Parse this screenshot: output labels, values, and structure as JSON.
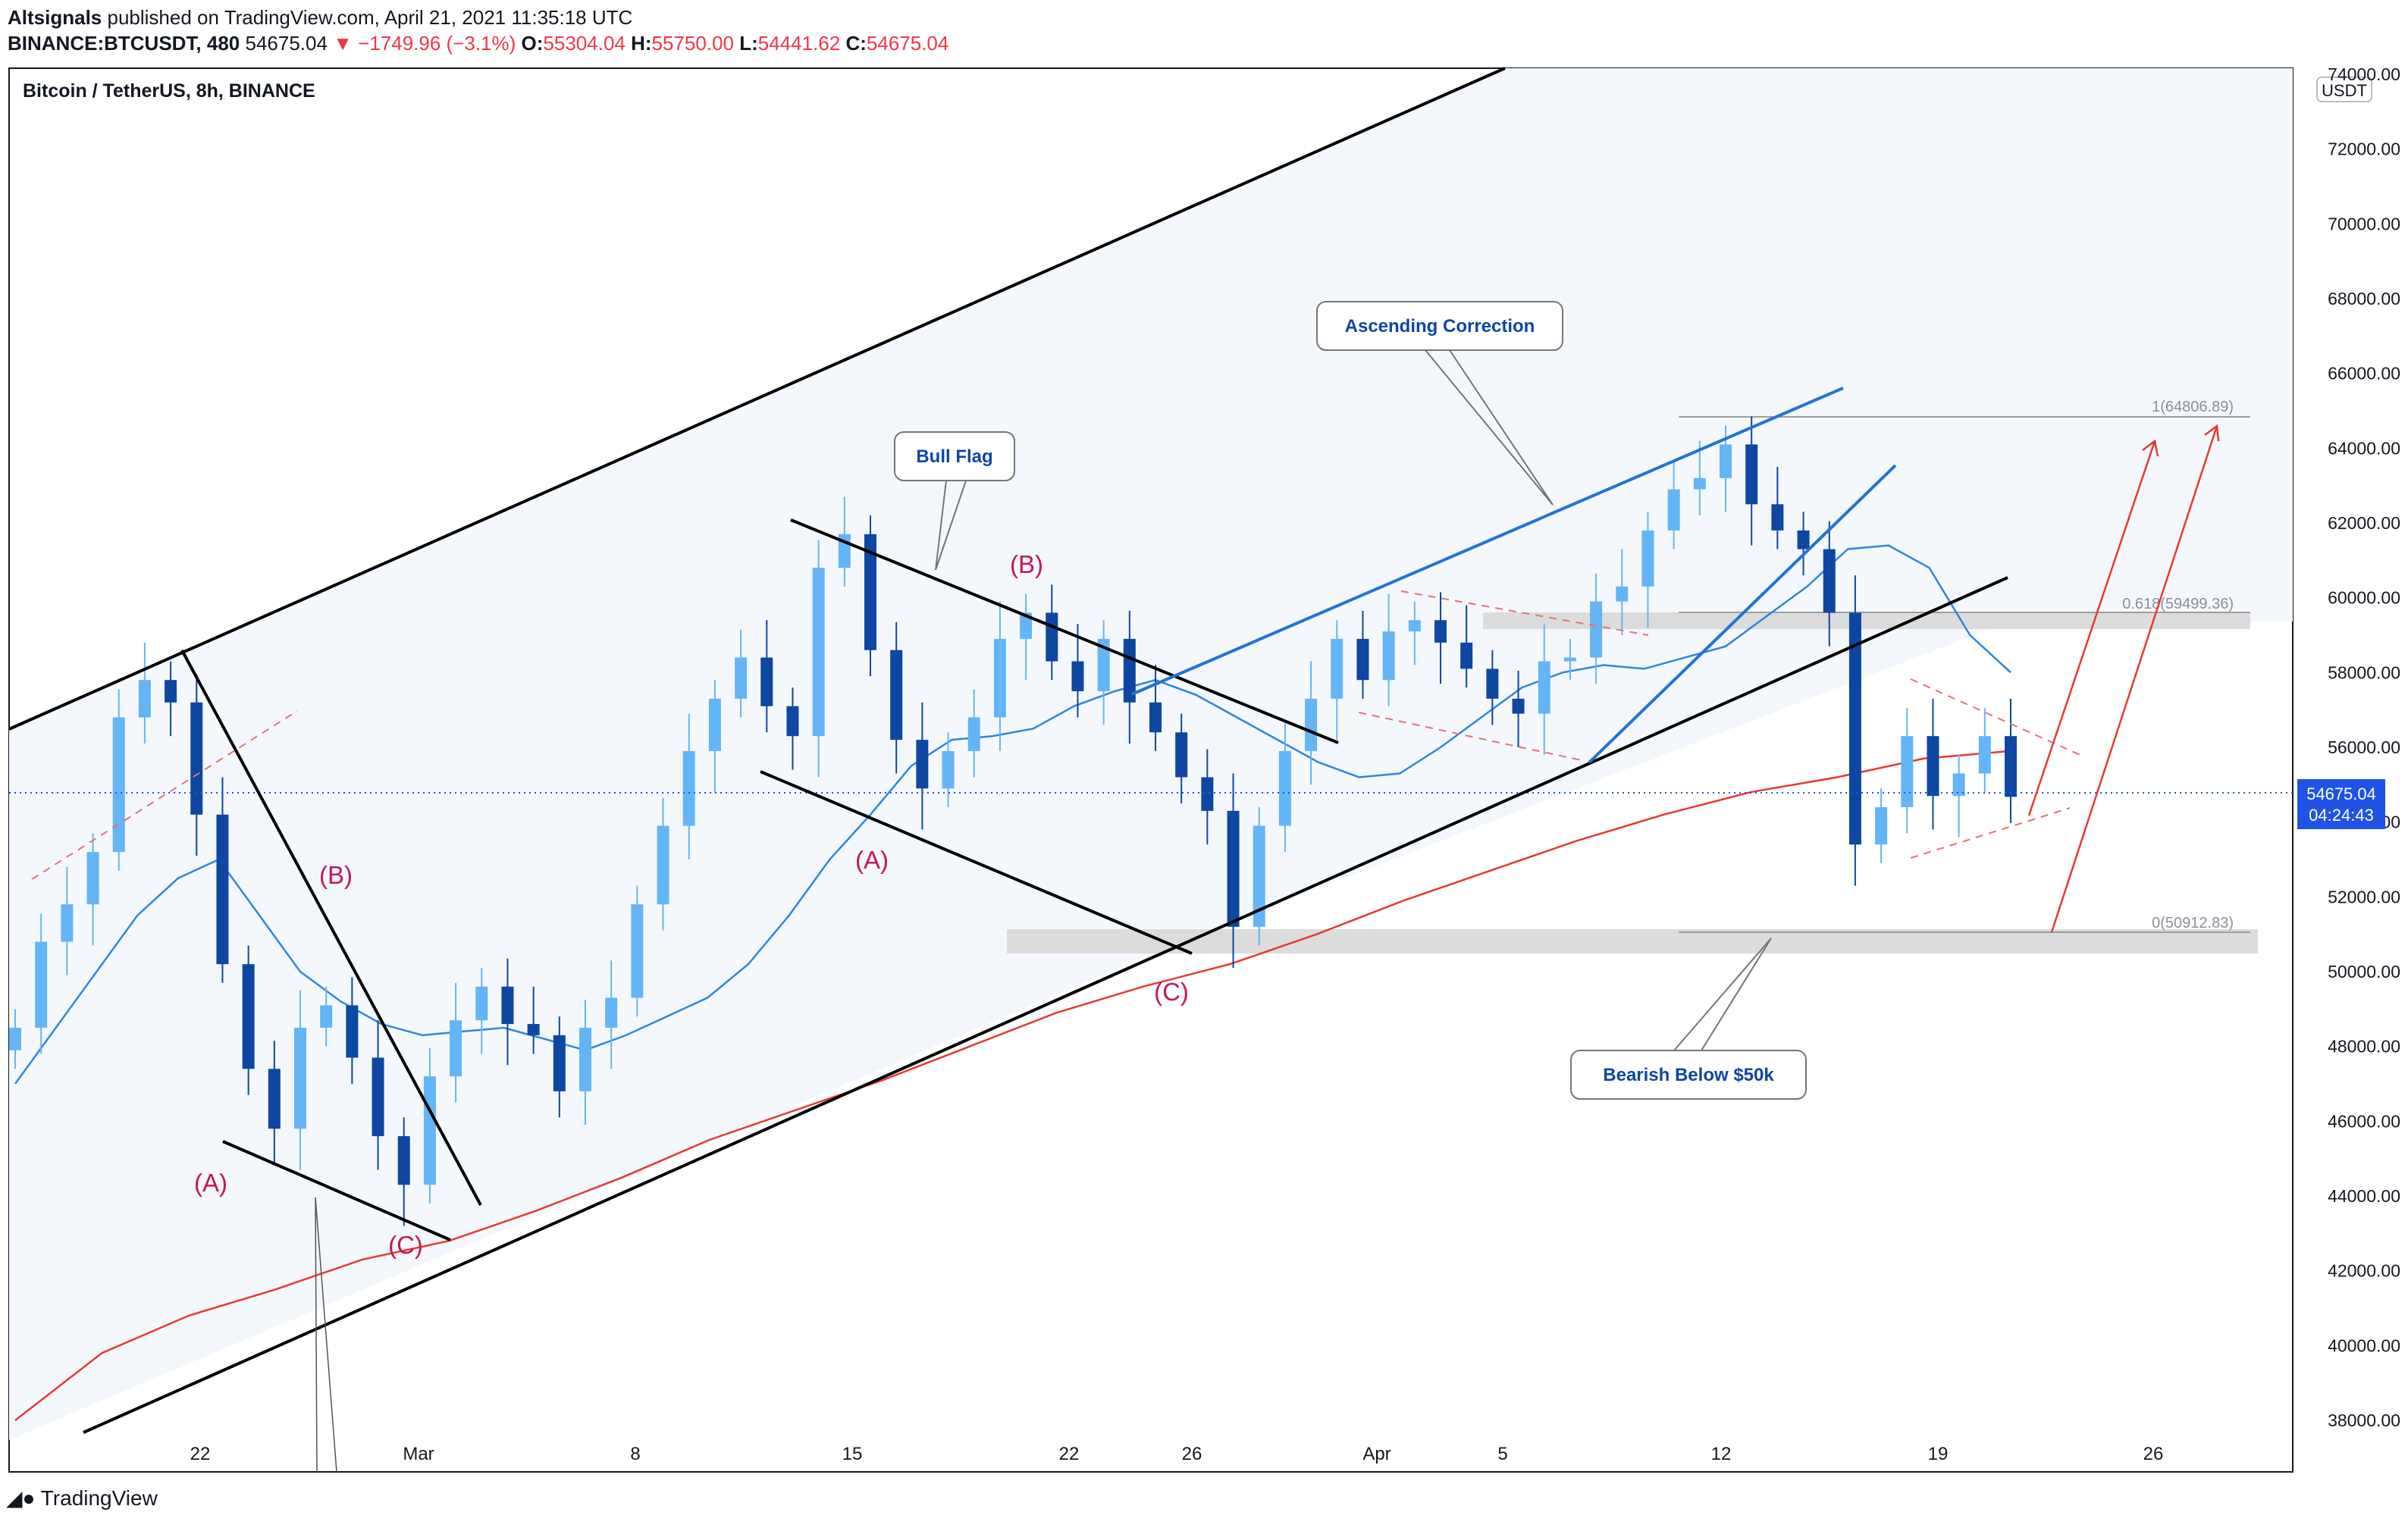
{
  "header": {
    "publisher": "Altsignals",
    "published_text": "published on TradingView.com, April 21, 2021 11:35:18 UTC",
    "symbol": "BINANCE:BTCUSDT, 480",
    "last": "54675.04",
    "change": "▼ −1749.96 (−3.1%)",
    "o_label": "O:",
    "o": "55304.04",
    "h_label": "H:",
    "h": "55750.00",
    "l_label": "L:",
    "l": "54441.62",
    "c_label": "C:",
    "c": "54675.04"
  },
  "chart_data": {
    "type": "candlestick",
    "title": "Bitcoin / TetherUS, 8h, BINANCE",
    "currency": "USDT",
    "y_ticks": [
      "74000.00",
      "72000.00",
      "70000.00",
      "68000.00",
      "66000.00",
      "64000.00",
      "62000.00",
      "60000.00",
      "58000.00",
      "56000.00",
      "54000.00",
      "52000.00",
      "50000.00",
      "48000.00",
      "46000.00",
      "44000.00",
      "42000.00",
      "40000.00",
      "38000.00"
    ],
    "ylim": [
      37600,
      74000
    ],
    "x_ticks": [
      "22",
      "Mar",
      "8",
      "15",
      "22",
      "26",
      "Apr",
      "5",
      "12",
      "19",
      "26"
    ],
    "last_price": "54675.04",
    "countdown": "04:24:43",
    "fib_levels": [
      {
        "label": "1(64806.89)",
        "value": 64806.89
      },
      {
        "label": "0.618(59499.36)",
        "value": 59499.36
      },
      {
        "label": "0(50912.83)",
        "value": 50912.83
      }
    ],
    "callouts": [
      "Ascending Correction",
      "Bull Flag",
      "Bearish Below $50k"
    ],
    "wave_labels": [
      "(A)",
      "(B)",
      "(C)",
      "(A)",
      "(B)",
      "(C)"
    ],
    "series": [
      {
        "name": "BTCUSDT 8h candles",
        "note": "approximate closes",
        "values": [
          48500,
          50800,
          51800,
          53200,
          56800,
          57800,
          57200,
          54200,
          50200,
          47400,
          45800,
          48500,
          49100,
          47700,
          45600,
          44300,
          47200,
          48700,
          49600,
          48600,
          48300,
          46800,
          48500,
          49300,
          51800,
          53900,
          55900,
          57300,
          58400,
          57100,
          56300,
          60800,
          61700,
          58600,
          56200,
          54900,
          55900,
          56800,
          58900,
          59600,
          58300,
          57500,
          58900,
          57200,
          56400,
          55200,
          54300,
          51200,
          53900,
          55900,
          57300,
          58900,
          57800,
          59100,
          59400,
          58800,
          58100,
          57300,
          56900,
          58300,
          58400,
          59900,
          60300,
          61800,
          62900,
          63200,
          64100,
          62500,
          61800,
          61300,
          59600,
          53400,
          54400,
          56300,
          54700,
          55300,
          56300,
          54675
        ]
      },
      {
        "name": "EMA (blue)",
        "values": [
          47000,
          48500,
          50000,
          51500,
          52500,
          53000,
          51500,
          50000,
          49200,
          48600,
          48300,
          48400,
          48500,
          48200,
          47900,
          48300,
          48800,
          49300,
          50200,
          51500,
          53000,
          54200,
          55500,
          56200,
          56300,
          56500,
          57100,
          57500,
          57800,
          57400,
          56800,
          56200,
          55600,
          55200,
          55300,
          56000,
          56800,
          57600,
          58000,
          58200,
          58100,
          58400,
          58700,
          59500,
          60300,
          61300,
          61400,
          60800,
          59000,
          58000
        ]
      },
      {
        "name": "Long MA (red)",
        "values": [
          38000,
          39800,
          40800,
          41500,
          42300,
          42800,
          43600,
          44500,
          45500,
          46300,
          47100,
          48000,
          48900,
          49600,
          50200,
          51000,
          51900,
          52700,
          53500,
          54200,
          54800,
          55200,
          55700,
          55900
        ]
      }
    ]
  }
}
